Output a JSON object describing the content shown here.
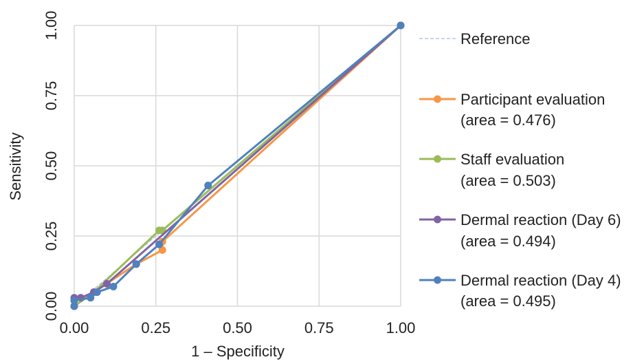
{
  "chart_data": {
    "type": "line",
    "title": "",
    "xlabel": "1 – Specificity",
    "ylabel": "Sensitivity",
    "xlim": [
      0,
      1
    ],
    "ylim": [
      0,
      1
    ],
    "x_ticks": [
      "0.00",
      "0.25",
      "0.50",
      "0.75",
      "1.00"
    ],
    "y_ticks": [
      "0.00",
      "0.25",
      "0.50",
      "0.75",
      "1.00"
    ],
    "grid": true,
    "legend_position": "right",
    "series": [
      {
        "name": "Reference",
        "style": "dashed",
        "markers": false,
        "color": "#aec7e3",
        "points": [
          [
            0,
            0
          ],
          [
            1,
            1
          ]
        ]
      },
      {
        "name": "Participant evaluation",
        "area_label": "(area = 0.476)",
        "color": "#f79646",
        "markers": true,
        "points": [
          [
            0,
            0
          ],
          [
            0.06,
            0.05
          ],
          [
            0.19,
            0.15
          ],
          [
            0.27,
            0.2
          ],
          [
            0.27,
            0.23
          ],
          [
            1,
            1
          ]
        ]
      },
      {
        "name": "Staff evaluation",
        "area_label": "(area = 0.503)",
        "color": "#9bbb59",
        "markers": true,
        "points": [
          [
            0,
            0
          ],
          [
            0.06,
            0.05
          ],
          [
            0.26,
            0.27
          ],
          [
            0.27,
            0.27
          ],
          [
            1,
            1
          ]
        ]
      },
      {
        "name": "Dermal reaction (Day 6)",
        "area_label": "(area = 0.494)",
        "color": "#8064a2",
        "markers": true,
        "points": [
          [
            0,
            0
          ],
          [
            0,
            0.03
          ],
          [
            0.02,
            0.03
          ],
          [
            0.06,
            0.05
          ],
          [
            0.1,
            0.08
          ],
          [
            1,
            1
          ]
        ]
      },
      {
        "name": "Dermal reaction (Day 4)",
        "area_label": "(area = 0.495)",
        "color": "#4f81bd",
        "markers": true,
        "points": [
          [
            0,
            0
          ],
          [
            0,
            0.02
          ],
          [
            0.05,
            0.03
          ],
          [
            0.07,
            0.05
          ],
          [
            0.12,
            0.07
          ],
          [
            0.19,
            0.15
          ],
          [
            0.26,
            0.22
          ],
          [
            0.41,
            0.43
          ],
          [
            1,
            1
          ]
        ]
      }
    ]
  }
}
